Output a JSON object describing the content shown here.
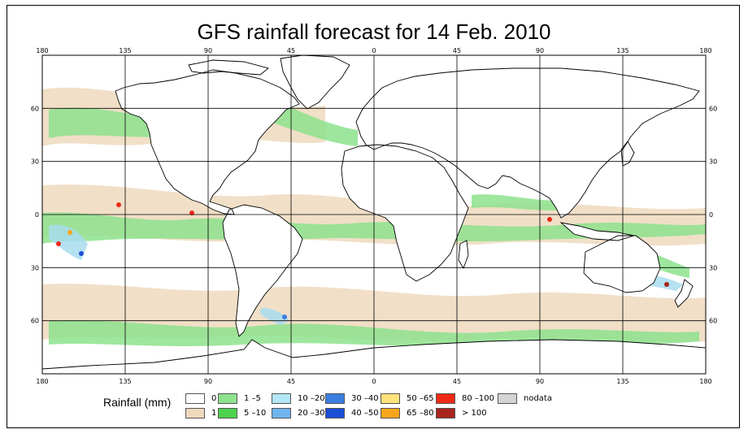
{
  "title": "GFS rainfall forecast for 14 Feb. 2010",
  "map": {
    "projection": "equirectangular",
    "lon_ticks_top": [
      "180",
      "135",
      "90",
      "45",
      "0",
      "45",
      "90",
      "135",
      "180"
    ],
    "lon_ticks_bottom": [
      "180",
      "135",
      "90",
      "45",
      "0",
      "45",
      "90",
      "135",
      "180"
    ],
    "lat_ticks_left": [
      "60",
      "30",
      "0",
      "30",
      "60"
    ],
    "lat_ticks_right": [
      "60",
      "30",
      "0",
      "30",
      "60"
    ],
    "grid": true,
    "colors": {
      "ocean_background": "#ffffff",
      "coastline": "#000000",
      "gridline": "#000000",
      "light_rain": "#efd9bd",
      "moderate_rain": "#8de28d",
      "heavy_rain": "#a8dcef"
    }
  },
  "legend": {
    "title": "Rainfall (mm)",
    "items": [
      {
        "label": "0",
        "color": "#ffffff"
      },
      {
        "label": "1",
        "color": "#efd9bd"
      },
      {
        "label": "1 –5",
        "color": "#8de28d"
      },
      {
        "label": "5 –10",
        "color": "#4cd24c"
      },
      {
        "label": "10 –20",
        "color": "#b3e7f5"
      },
      {
        "label": "20 –30",
        "color": "#6fb5f0"
      },
      {
        "label": "30 –40",
        "color": "#3c7ee0"
      },
      {
        "label": "40 –50",
        "color": "#1c4fd6"
      },
      {
        "label": "50 –65",
        "color": "#ffe27a"
      },
      {
        "label": "65 –80",
        "color": "#f7a51b"
      },
      {
        "label": "80 –100",
        "color": "#ee2a16"
      },
      {
        "label": "> 100",
        "color": "#a8251c"
      },
      {
        "label": "nodata",
        "color": "#d4d4d4"
      }
    ]
  }
}
